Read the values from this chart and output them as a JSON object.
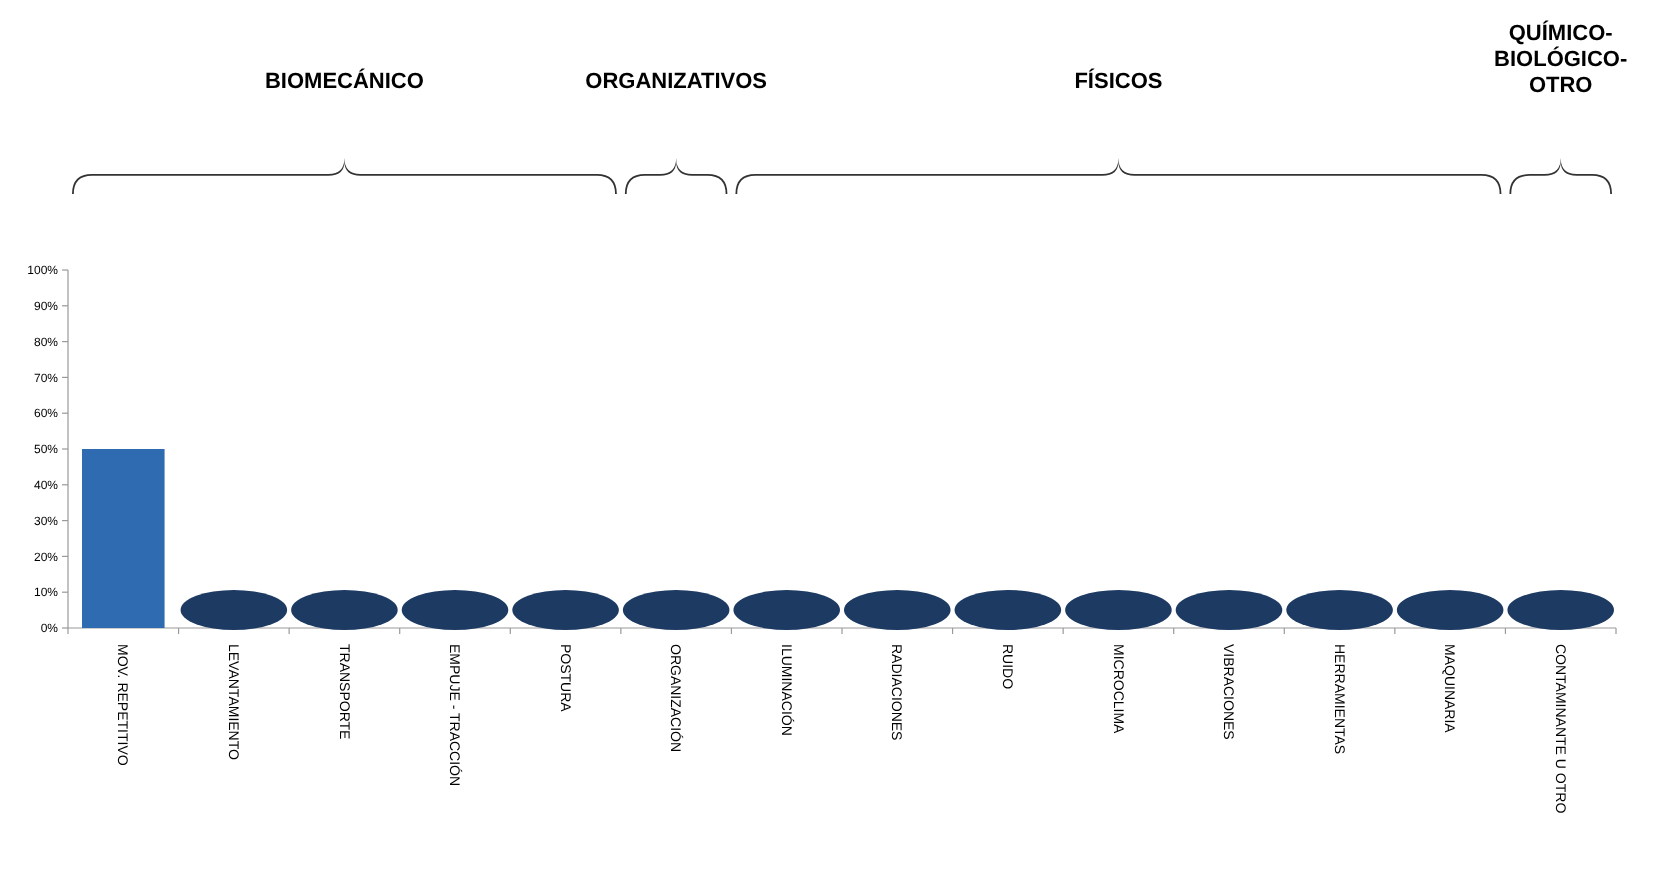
{
  "chart_data": {
    "type": "bar",
    "categories": [
      "MOV. REPETITIVO",
      "LEVANTAMIENTO",
      "TRANSPORTE",
      "EMPUJE - TRACCIÓN",
      "POSTURA",
      "ORGANIZACIÓN",
      "ILUMINACIÓN",
      "RADIACIONES",
      "RUIDO",
      "MICROCLIMA",
      "VIBRACIONES",
      "HERRAMIENTAS",
      "MAQUINARIA",
      "CONTAMINANTE U OTRO"
    ],
    "values": [
      50,
      0,
      0,
      0,
      0,
      0,
      0,
      0,
      0,
      0,
      0,
      0,
      0,
      0
    ],
    "color": "#2e6bb0",
    "ylim": [
      0,
      100
    ],
    "yticks": [
      {
        "value": 0,
        "label": "0%"
      },
      {
        "value": 10,
        "label": "10%"
      },
      {
        "value": 20,
        "label": "20%"
      },
      {
        "value": 30,
        "label": "30%"
      },
      {
        "value": 40,
        "label": "40%"
      },
      {
        "value": 50,
        "label": "50%"
      },
      {
        "value": 60,
        "label": "60%"
      },
      {
        "value": 70,
        "label": "70%"
      },
      {
        "value": 80,
        "label": "80%"
      },
      {
        "value": 90,
        "label": "90%"
      },
      {
        "value": 100,
        "label": "100%"
      }
    ],
    "annotations": [
      "BIOMECÁNICO",
      "ORGANIZATIVOS",
      "FÍSICOS",
      "QUÍMICO-BIOLÓGICO-OTRO"
    ]
  }
}
